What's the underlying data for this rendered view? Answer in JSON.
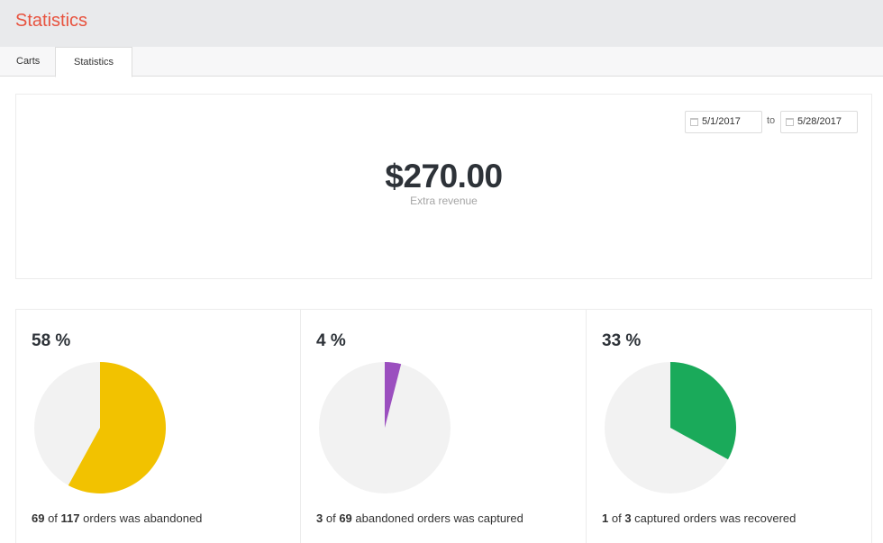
{
  "header": {
    "title": "Statistics"
  },
  "tabs": [
    {
      "label": "Carts",
      "active": false
    },
    {
      "label": "Statistics",
      "active": true
    }
  ],
  "date_range": {
    "from": "5/1/2017",
    "to_label": "to",
    "to": "5/28/2017"
  },
  "revenue": {
    "amount": "$270.00",
    "label": "Extra revenue"
  },
  "cards": [
    {
      "percent_text": "58 %",
      "fraction": 0.58,
      "color": "#f2c200",
      "num": "69",
      "of_text": " of ",
      "den": "117",
      "rest": " orders was abandoned"
    },
    {
      "percent_text": "4 %",
      "fraction": 0.04,
      "color": "#9b4fbf",
      "num": "3",
      "of_text": " of ",
      "den": "69",
      "rest": " abandoned orders was captured"
    },
    {
      "percent_text": "33 %",
      "fraction": 0.33,
      "color": "#1aaa5a",
      "num": "1",
      "of_text": " of ",
      "den": "3",
      "rest": " captured orders was recovered"
    }
  ],
  "pie_background": "#f2f2f2"
}
